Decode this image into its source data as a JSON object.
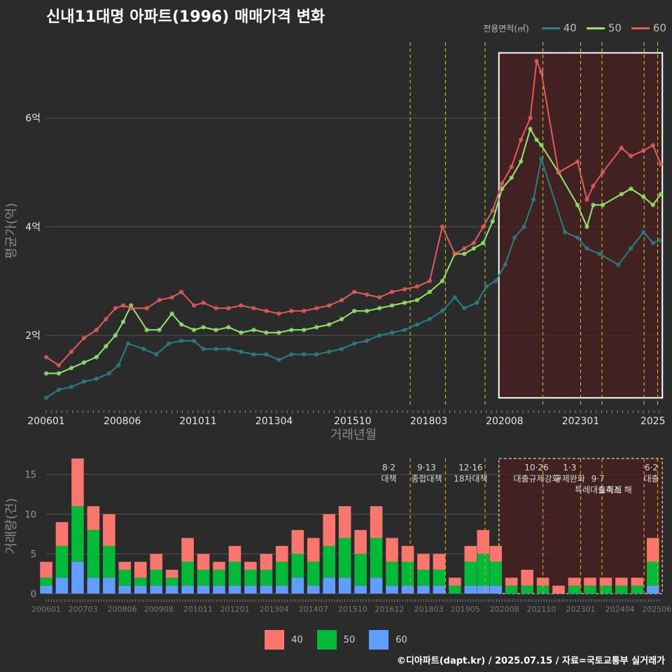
{
  "chart_data": [
    {
      "type": "line",
      "title": "신내11대명 아파트(1996) 매매가격 변화",
      "xlabel": "거래년월",
      "ylabel": "평균가(억)",
      "x_tick_labels": [
        "200601",
        "200806",
        "201011",
        "201304",
        "201510",
        "201803",
        "202008",
        "202301",
        "2025"
      ],
      "y_tick_labels": [
        "2억",
        "4억",
        "6억"
      ],
      "y_ticks": [
        2,
        4,
        6
      ],
      "ylim": [
        0.7,
        7.4
      ],
      "legend_title": "전용면적(㎡)",
      "legend_position": "top-right",
      "grid": true,
      "highlight_box": {
        "x_start": 2020.4,
        "x_end": 2025.6,
        "y_start": 0.85,
        "y_end": 7.2
      },
      "policy_dates": [
        2017.58,
        2018.7,
        2019.96,
        2021.8,
        2023.0,
        2023.68,
        2025.02,
        2025.45
      ],
      "series": [
        {
          "name": "40",
          "color": "#2a7f85",
          "x": [
            2006.0,
            2006.4,
            2006.8,
            2007.2,
            2007.6,
            2008.0,
            2008.3,
            2008.6,
            2009.1,
            2009.5,
            2009.9,
            2010.3,
            2010.7,
            2011.0,
            2011.4,
            2011.8,
            2012.2,
            2012.6,
            2013.0,
            2013.4,
            2013.8,
            2014.2,
            2014.6,
            2015.0,
            2015.4,
            2015.8,
            2016.2,
            2016.6,
            2017.0,
            2017.4,
            2017.8,
            2018.2,
            2018.6,
            2019.0,
            2019.3,
            2019.7,
            2020.0,
            2020.3,
            2020.6,
            2020.9,
            2021.2,
            2021.5,
            2021.75,
            2022.5,
            2022.9,
            2023.2,
            2023.6,
            2024.2,
            2024.6,
            2025.0,
            2025.3,
            2025.5
          ],
          "values": [
            0.85,
            1.0,
            1.05,
            1.15,
            1.2,
            1.3,
            1.45,
            1.85,
            1.75,
            1.65,
            1.85,
            1.9,
            1.9,
            1.75,
            1.75,
            1.75,
            1.7,
            1.65,
            1.65,
            1.55,
            1.65,
            1.65,
            1.65,
            1.7,
            1.75,
            1.85,
            1.9,
            2.0,
            2.05,
            2.1,
            2.2,
            2.3,
            2.45,
            2.7,
            2.5,
            2.6,
            2.9,
            3.0,
            3.3,
            3.8,
            4.0,
            4.5,
            5.25,
            3.9,
            3.8,
            3.6,
            3.5,
            3.3,
            3.6,
            3.9,
            3.7,
            3.75
          ]
        },
        {
          "name": "50",
          "color": "#90e86c",
          "x": [
            2006.0,
            2006.4,
            2006.8,
            2007.2,
            2007.6,
            2007.9,
            2008.2,
            2008.45,
            2008.7,
            2009.2,
            2009.6,
            2010.0,
            2010.3,
            2010.7,
            2011.0,
            2011.4,
            2011.8,
            2012.2,
            2012.6,
            2013.0,
            2013.4,
            2013.8,
            2014.2,
            2014.6,
            2015.0,
            2015.4,
            2015.8,
            2016.2,
            2016.6,
            2017.0,
            2017.4,
            2017.8,
            2018.2,
            2018.6,
            2019.0,
            2019.3,
            2019.6,
            2019.9,
            2020.2,
            2020.5,
            2020.8,
            2021.1,
            2021.4,
            2021.6,
            2021.75,
            2022.3,
            2022.9,
            2023.2,
            2023.4,
            2023.7,
            2024.3,
            2024.6,
            2025.0,
            2025.3,
            2025.55
          ],
          "values": [
            1.3,
            1.3,
            1.4,
            1.5,
            1.6,
            1.8,
            2.0,
            2.25,
            2.55,
            2.1,
            2.1,
            2.4,
            2.2,
            2.1,
            2.15,
            2.1,
            2.15,
            2.05,
            2.1,
            2.05,
            2.05,
            2.1,
            2.1,
            2.15,
            2.2,
            2.3,
            2.45,
            2.45,
            2.5,
            2.55,
            2.6,
            2.65,
            2.8,
            3.0,
            3.5,
            3.5,
            3.6,
            3.7,
            4.1,
            4.7,
            4.9,
            5.2,
            5.8,
            5.6,
            5.5,
            5.0,
            4.4,
            4.0,
            4.4,
            4.4,
            4.6,
            4.7,
            4.55,
            4.4,
            4.6
          ]
        },
        {
          "name": "60",
          "color": "#e55b5b",
          "x": [
            2006.0,
            2006.4,
            2006.8,
            2007.2,
            2007.6,
            2007.9,
            2008.2,
            2008.45,
            2008.7,
            2009.2,
            2009.6,
            2010.0,
            2010.3,
            2010.7,
            2011.0,
            2011.4,
            2011.8,
            2012.2,
            2012.6,
            2013.0,
            2013.4,
            2013.8,
            2014.2,
            2014.6,
            2015.0,
            2015.4,
            2015.8,
            2016.2,
            2016.6,
            2017.0,
            2017.4,
            2017.8,
            2018.2,
            2018.6,
            2019.0,
            2019.3,
            2019.6,
            2019.9,
            2020.2,
            2020.5,
            2020.8,
            2021.1,
            2021.4,
            2021.6,
            2021.75,
            2022.3,
            2022.9,
            2023.2,
            2023.4,
            2023.7,
            2024.3,
            2024.6,
            2025.0,
            2025.3,
            2025.55
          ],
          "values": [
            1.6,
            1.45,
            1.7,
            1.95,
            2.1,
            2.3,
            2.5,
            2.55,
            2.5,
            2.5,
            2.65,
            2.7,
            2.8,
            2.55,
            2.6,
            2.5,
            2.5,
            2.55,
            2.5,
            2.45,
            2.4,
            2.45,
            2.45,
            2.5,
            2.55,
            2.65,
            2.8,
            2.75,
            2.7,
            2.8,
            2.85,
            2.9,
            3.0,
            4.0,
            3.5,
            3.6,
            3.7,
            4.0,
            4.3,
            4.8,
            5.1,
            5.6,
            6.0,
            7.05,
            6.85,
            5.0,
            5.2,
            4.5,
            4.75,
            5.0,
            5.45,
            5.3,
            5.4,
            5.5,
            5.15
          ]
        }
      ]
    },
    {
      "type": "bar",
      "stacked": true,
      "ylabel": "거래량(건)",
      "x_tick_labels": [
        "200601",
        "200703",
        "200806",
        "200908",
        "201011",
        "201201",
        "201304",
        "201407",
        "201510",
        "201612",
        "201803",
        "201905",
        "202008",
        "202110",
        "202301",
        "202404",
        "202506"
      ],
      "y_tick_labels": [
        "0",
        "5",
        "10",
        "15"
      ],
      "y_ticks": [
        0,
        5,
        10,
        15
      ],
      "ylim": [
        0,
        17
      ],
      "legend_position": "bottom",
      "series": [
        {
          "name": "40",
          "color": "#f8766d"
        },
        {
          "name": "50",
          "color": "#00ba38"
        },
        {
          "name": "60",
          "color": "#619cff"
        }
      ],
      "volume_samples": [
        {
          "x": 2006.0,
          "values": [
            2,
            1,
            1
          ]
        },
        {
          "x": 2006.5,
          "values": [
            3,
            4,
            2
          ]
        },
        {
          "x": 2007.0,
          "values": [
            6,
            7,
            4
          ]
        },
        {
          "x": 2007.5,
          "values": [
            3,
            6,
            2
          ]
        },
        {
          "x": 2008.0,
          "values": [
            4,
            4,
            2
          ]
        },
        {
          "x": 2008.5,
          "values": [
            1,
            2,
            1
          ]
        },
        {
          "x": 2009.0,
          "values": [
            2,
            1,
            1
          ]
        },
        {
          "x": 2009.5,
          "values": [
            2,
            2,
            1
          ]
        },
        {
          "x": 2010.0,
          "values": [
            1,
            1,
            1
          ]
        },
        {
          "x": 2010.5,
          "values": [
            3,
            3,
            1
          ]
        },
        {
          "x": 2011.0,
          "values": [
            2,
            2,
            1
          ]
        },
        {
          "x": 2011.5,
          "values": [
            1,
            2,
            1
          ]
        },
        {
          "x": 2012.0,
          "values": [
            2,
            3,
            1
          ]
        },
        {
          "x": 2012.5,
          "values": [
            1,
            2,
            1
          ]
        },
        {
          "x": 2013.0,
          "values": [
            2,
            2,
            1
          ]
        },
        {
          "x": 2013.5,
          "values": [
            2,
            3,
            1
          ]
        },
        {
          "x": 2014.0,
          "values": [
            3,
            3,
            2
          ]
        },
        {
          "x": 2014.5,
          "values": [
            3,
            3,
            1
          ]
        },
        {
          "x": 2015.0,
          "values": [
            4,
            4,
            2
          ]
        },
        {
          "x": 2015.5,
          "values": [
            4,
            5,
            2
          ]
        },
        {
          "x": 2016.0,
          "values": [
            3,
            4,
            1
          ]
        },
        {
          "x": 2016.5,
          "values": [
            4,
            5,
            2
          ]
        },
        {
          "x": 2017.0,
          "values": [
            3,
            3,
            1
          ]
        },
        {
          "x": 2017.5,
          "values": [
            2,
            3,
            1
          ]
        },
        {
          "x": 2018.0,
          "values": [
            2,
            2,
            1
          ]
        },
        {
          "x": 2018.5,
          "values": [
            2,
            2,
            1
          ]
        },
        {
          "x": 2019.0,
          "values": [
            1,
            1,
            0
          ]
        },
        {
          "x": 2019.5,
          "values": [
            2,
            3,
            1
          ]
        },
        {
          "x": 2019.9,
          "values": [
            3,
            4,
            1
          ]
        },
        {
          "x": 2020.3,
          "values": [
            2,
            3,
            1
          ]
        },
        {
          "x": 2020.8,
          "values": [
            1,
            1,
            0
          ]
        },
        {
          "x": 2021.3,
          "values": [
            2,
            1,
            0
          ]
        },
        {
          "x": 2021.8,
          "values": [
            1,
            1,
            0
          ]
        },
        {
          "x": 2022.3,
          "values": [
            1,
            0,
            0
          ]
        },
        {
          "x": 2022.8,
          "values": [
            1,
            1,
            0
          ]
        },
        {
          "x": 2023.3,
          "values": [
            1,
            1,
            0
          ]
        },
        {
          "x": 2023.8,
          "values": [
            1,
            1,
            0
          ]
        },
        {
          "x": 2024.3,
          "values": [
            1,
            1,
            0
          ]
        },
        {
          "x": 2024.8,
          "values": [
            1,
            1,
            0
          ]
        },
        {
          "x": 2025.3,
          "values": [
            3,
            3,
            1
          ]
        }
      ],
      "annotations": [
        {
          "date": "8·2",
          "text": "대책"
        },
        {
          "date": "9·13",
          "text": "종합대책"
        },
        {
          "date": "12·16",
          "text": "18차대책"
        },
        {
          "date": "10·26",
          "text": "대출규제강화"
        },
        {
          "date": "1·3",
          "text": "규제완화"
        },
        {
          "date": "9·7",
          "text": "특례대출축소"
        },
        {
          "date": "",
          "text": "토허제 해"
        },
        {
          "date": "6·2",
          "text": "대출"
        }
      ]
    }
  ],
  "legend_bottom_labels": [
    "40",
    "50",
    "60"
  ],
  "footer": "©디아파트(dapt.kr) / 2025.07.15 / 자료=국토교통부 실거래가"
}
